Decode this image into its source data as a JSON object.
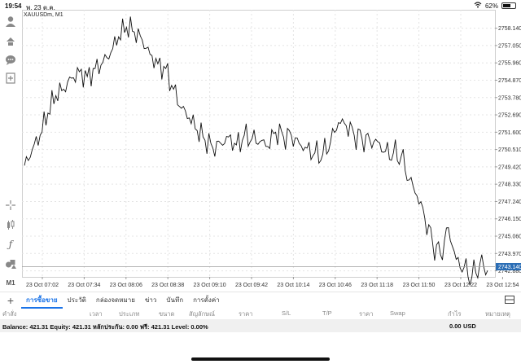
{
  "status": {
    "time": "19:54",
    "date": "พ. 23 ต.ค.",
    "battery": "62%",
    "battery_level": 0.62
  },
  "chart": {
    "symbol": "XAUUSDm, M1",
    "current_price": "2743.140"
  },
  "chart_data": {
    "type": "line",
    "ylim": [
      2742.5,
      2759.3
    ],
    "y_ticks": [
      "2758.140",
      "2757.050",
      "2755.960",
      "2754.870",
      "2753.780",
      "2752.690",
      "2751.600",
      "2750.510",
      "2749.420",
      "2748.330",
      "2747.240",
      "2746.150",
      "2745.060",
      "2743.970",
      "2742.880"
    ],
    "y_tick_values": [
      2758.14,
      2757.05,
      2755.96,
      2754.87,
      2753.78,
      2752.69,
      2751.6,
      2750.51,
      2749.42,
      2748.33,
      2747.24,
      2746.15,
      2745.06,
      2743.97,
      2742.88
    ],
    "x_ticks": [
      "23 Oct 07:02",
      "23 Oct 07:34",
      "23 Oct 08:06",
      "23 Oct 08:38",
      "23 Oct 09:10",
      "23 Oct 09:42",
      "23 Oct 10:14",
      "23 Oct 10:46",
      "23 Oct 11:18",
      "23 Oct 11:50",
      "23 Oct 12:22",
      "23 Oct 12:54"
    ],
    "x": [
      "07:02",
      "07:08",
      "07:14",
      "07:20",
      "07:26",
      "07:32",
      "07:38",
      "07:44",
      "07:50",
      "07:56",
      "08:02",
      "08:08",
      "08:14",
      "08:20",
      "08:26",
      "08:32",
      "08:38",
      "08:44",
      "08:50",
      "08:56",
      "09:02",
      "09:08",
      "09:14",
      "09:20",
      "09:26",
      "09:32",
      "09:38",
      "09:44",
      "09:50",
      "09:56",
      "10:02",
      "10:08",
      "10:14",
      "10:20",
      "10:26",
      "10:32",
      "10:38",
      "10:44",
      "10:50",
      "10:56",
      "11:02",
      "11:08",
      "11:14",
      "11:20",
      "11:26",
      "11:32",
      "11:38",
      "11:44",
      "11:50",
      "11:56",
      "12:02",
      "12:08",
      "12:14",
      "12:20",
      "12:26",
      "12:32",
      "12:38",
      "12:44",
      "12:50",
      "12:56"
    ],
    "series": [
      {
        "values": [
          2749.5,
          2750.5,
          2751.4,
          2752.8,
          2753.9,
          2754.3,
          2755.0,
          2755.4,
          2755.1,
          2755.6,
          2756.0,
          2756.6,
          2757.6,
          2758.2,
          2757.9,
          2757.4,
          2756.5,
          2755.9,
          2755.6,
          2754.3,
          2753.1,
          2752.5,
          2751.7,
          2751.1,
          2750.6,
          2750.9,
          2751.3,
          2750.8,
          2751.4,
          2751.2,
          2751.0,
          2750.7,
          2751.6,
          2751.3,
          2751.4,
          2750.9,
          2750.6,
          2750.3,
          2750.2,
          2751.0,
          2752.2,
          2752.0,
          2751.4,
          2751.2,
          2751.1,
          2751.0,
          2750.4,
          2750.3,
          2750.1,
          2748.6,
          2747.6,
          2746.2,
          2744.6,
          2743.9,
          2745.6,
          2743.6,
          2743.1,
          2742.5,
          2743.3,
          2742.9
        ]
      }
    ]
  },
  "tabs": {
    "add": "+",
    "items": [
      {
        "label": "การซื้อขาย",
        "active": true
      },
      {
        "label": "ประวัติ"
      },
      {
        "label": "กล่องจดหมาย"
      },
      {
        "label": "ข่าว"
      },
      {
        "label": "บันทึก"
      },
      {
        "label": "การตั้งค่า"
      }
    ]
  },
  "columns": [
    "คำสั่ง",
    "เวลา",
    "ประเภท",
    "ขนาด",
    "สัญลักษณ์",
    "ราคา",
    "S/L",
    "T/P",
    "ราคา",
    "Swap",
    "กำไร",
    "หมายเหตุ"
  ],
  "balance": {
    "text": "Balance: 421.31  Equity: 421.31  หลักประกัน: 0.00  ฟรี: 421.31  Level: 0.00%",
    "profit": "0.00",
    "currency": "USD"
  },
  "toolbar": {
    "period": "M1",
    "icons": [
      "account-icon",
      "trade-icon",
      "chat-icon",
      "new-order-icon",
      "crosshair-icon",
      "candles-icon",
      "indicator-icon",
      "objects-icon"
    ]
  },
  "colors": {
    "accent": "#1a73e8",
    "line": "#111111",
    "price_tag": "#2a6db5"
  }
}
